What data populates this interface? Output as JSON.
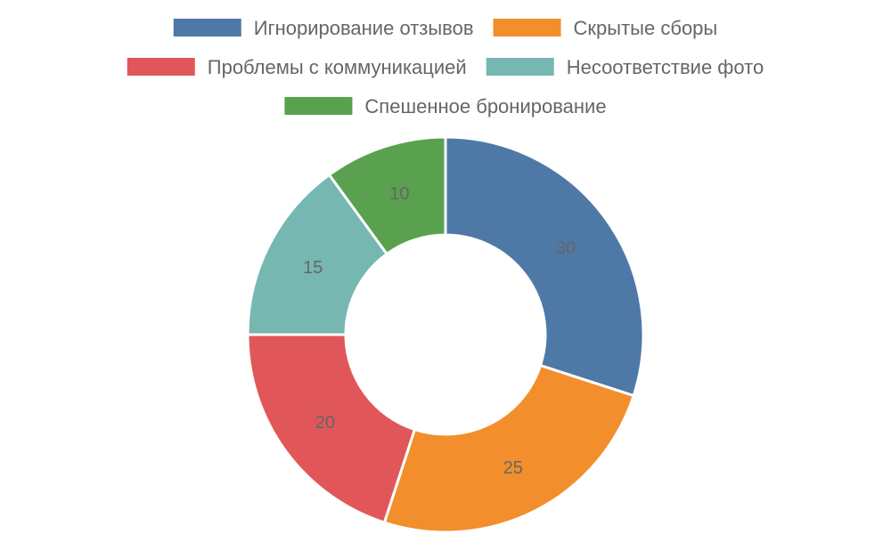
{
  "chart_data": {
    "type": "pie",
    "variant": "donut",
    "title": "",
    "categories": [
      "Игнорирование отзывов",
      "Скрытые сборы",
      "Проблемы с коммуникацией",
      "Несоответствие фото",
      "Спешенное бронирование"
    ],
    "values": [
      30,
      25,
      20,
      15,
      10
    ],
    "colors": [
      "#4e79a7",
      "#f28e2b",
      "#e15759",
      "#76b7b2",
      "#59a14f"
    ],
    "legend_position": "top",
    "show_values": true
  }
}
